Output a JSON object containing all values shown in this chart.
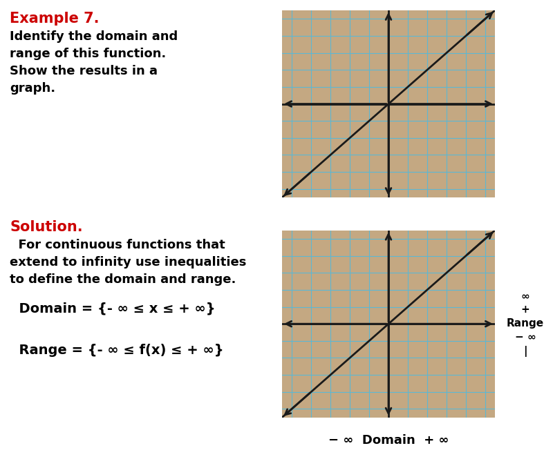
{
  "background_color": "#ffffff",
  "grid_bg_color": "#C4A882",
  "grid_line_color": "#5BB8D4",
  "axis_color": "#1a1a1a",
  "line_color": "#1a1a1a",
  "example_label": "Example 7.",
  "example_color": "#cc0000",
  "example_text": "Identify the domain and\nrange of this function.\nShow the results in a\ngraph.",
  "solution_label": "Solution.",
  "solution_color": "#cc0000",
  "solution_text": "  For continuous functions that\nextend to infinity use inequalities\nto define the domain and range.",
  "domain_text": "  Domain = {- ∞ ≤ x ≤ + ∞}",
  "range_text": "  Range = {- ∞ ≤ f(x) ≤ + ∞}",
  "domain_label": "− ∞  Domain  + ∞",
  "range_label": "∞\n+\nRange\n− ∞\n|",
  "grid_n": 10,
  "font_size_example": 15,
  "font_size_body": 13,
  "font_size_solution": 15,
  "font_size_math": 14,
  "graph_xlim": [
    -5.5,
    5.5
  ],
  "graph_ylim": [
    -5.5,
    5.5
  ],
  "graph_grid_ticks": [
    -5,
    -4,
    -3,
    -2,
    -1,
    0,
    1,
    2,
    3,
    4,
    5
  ]
}
